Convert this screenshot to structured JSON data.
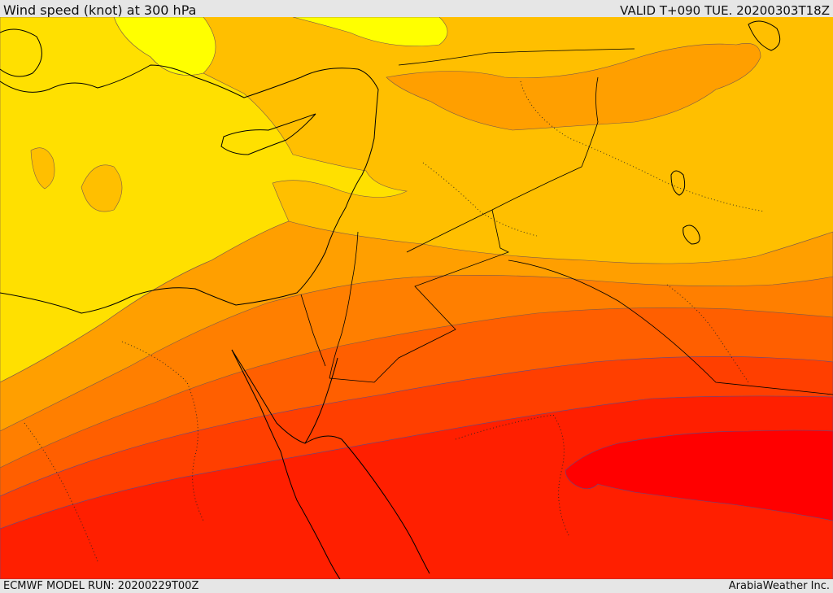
{
  "header": {
    "title": "Wind speed (knot) at 300 hPa",
    "valid_label": "VALID T+090 TUE. 20200303T18Z"
  },
  "footer": {
    "model_run": "ECMWF MODEL RUN: 20200229T00Z",
    "credit": "ArabiaWeather Inc."
  },
  "map": {
    "variable": "wind speed",
    "units": "knot",
    "level": "300 hPa",
    "band_colors": [
      "#ffff00",
      "#ffe000",
      "#ffbf00",
      "#ff9f00",
      "#ff7f00",
      "#ff5f00",
      "#ff3f00",
      "#ff1f00",
      "#ff0000"
    ],
    "contour_color": "#7a5a4a",
    "coast_color": "#000000",
    "border_style": "dotted"
  }
}
